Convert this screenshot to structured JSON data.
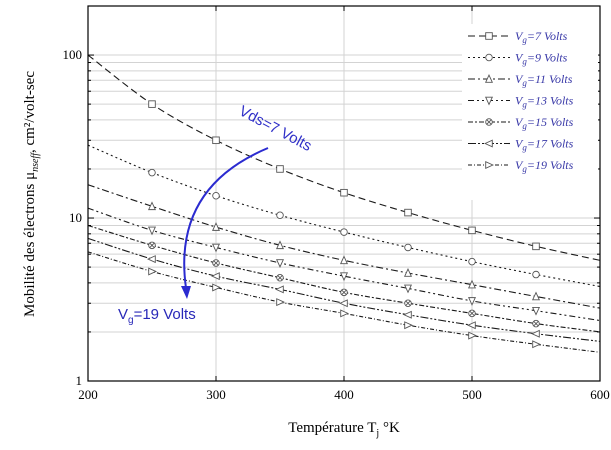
{
  "chart_data": {
    "type": "line",
    "xlabel_main": "Température T",
    "xlabel_sub": "j",
    "xlabel_unit": " °K",
    "ylabel_main": "Mobilité des électrons μ",
    "ylabel_sub": "nseff",
    "ylabel_unit": ", cm²/volt-sec",
    "yscale": "log",
    "xlim": [
      200,
      600
    ],
    "ylim": [
      1,
      200
    ],
    "x_ticks": [
      200,
      300,
      400,
      500,
      600
    ],
    "x_tick_labels": [
      "200",
      "300",
      "400",
      "500",
      "600"
    ],
    "y_ticks": [
      1,
      10,
      100
    ],
    "y_tick_labels": [
      "1",
      "10",
      "100"
    ],
    "grid": true,
    "legend_position": "top-right",
    "x": [
      200,
      250,
      300,
      350,
      400,
      450,
      500,
      550,
      600
    ],
    "series": [
      {
        "name": "V_g=7 Volts",
        "label_main": "V",
        "label_sub": "g",
        "label_rest": "=7 Volts",
        "marker": "square",
        "values": [
          100,
          50,
          30,
          20,
          14.3,
          10.8,
          8.4,
          6.7,
          5.5
        ]
      },
      {
        "name": "V_g=9 Volts",
        "label_main": "V",
        "label_sub": "g",
        "label_rest": "=9 Volts",
        "marker": "circle",
        "values": [
          28,
          19,
          13.7,
          10.4,
          8.2,
          6.6,
          5.4,
          4.5,
          3.8
        ]
      },
      {
        "name": "V_g=11 Volts",
        "label_main": "V",
        "label_sub": "g",
        "label_rest": "=11 Volts",
        "marker": "triangle-up",
        "values": [
          16,
          11.8,
          8.8,
          6.8,
          5.5,
          4.6,
          3.9,
          3.3,
          2.8
        ]
      },
      {
        "name": "V_g=13 Volts",
        "label_main": "V",
        "label_sub": "g",
        "label_rest": "=13 Volts",
        "marker": "triangle-down",
        "values": [
          11.5,
          8.4,
          6.6,
          5.3,
          4.4,
          3.7,
          3.1,
          2.7,
          2.35
        ]
      },
      {
        "name": "V_g=15 Volts",
        "label_main": "V",
        "label_sub": "g",
        "label_rest": "=15 Volts",
        "marker": "circle-x",
        "values": [
          9,
          6.8,
          5.3,
          4.3,
          3.5,
          3.0,
          2.6,
          2.25,
          2.0
        ]
      },
      {
        "name": "V_g=17 Volts",
        "label_main": "V",
        "label_sub": "g",
        "label_rest": "=17 Volts",
        "marker": "triangle-left",
        "values": [
          7.5,
          5.6,
          4.4,
          3.65,
          3.0,
          2.55,
          2.2,
          1.95,
          1.75
        ]
      },
      {
        "name": "V_g=19 Volts",
        "label_main": "V",
        "label_sub": "g",
        "label_rest": "=19 Volts",
        "marker": "triangle-right",
        "values": [
          6.2,
          4.7,
          3.75,
          3.05,
          2.6,
          2.2,
          1.9,
          1.68,
          1.5
        ]
      }
    ],
    "annotations": [
      {
        "text": "Vds=7 Volts",
        "color": "#3030c8"
      },
      {
        "text_main": "V",
        "text_sub": "g",
        "text_rest": "=19 Volts",
        "color": "#2828b8"
      }
    ],
    "arrow_color": "#2b2bd0"
  }
}
